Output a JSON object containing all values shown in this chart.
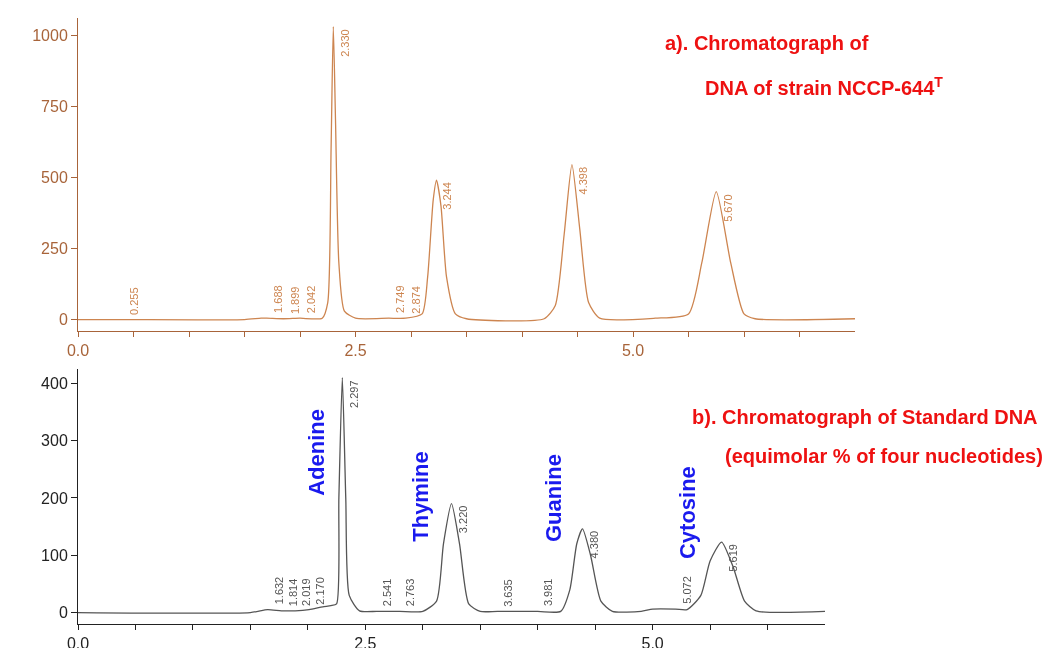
{
  "chart_data": [
    {
      "type": "line",
      "title": "a). Chromatograph of",
      "subtitle": "DNA of strain NCCP-644$^{T}$",
      "x": [
        0,
        0.4,
        1.5,
        1.65,
        1.7,
        1.85,
        2.0,
        2.2,
        2.25,
        2.28,
        2.3,
        2.32,
        2.35,
        2.4,
        2.5,
        2.8,
        2.95,
        3.1,
        3.15,
        3.2,
        3.23,
        3.27,
        3.32,
        3.4,
        3.5,
        4.2,
        4.3,
        4.38,
        4.45,
        4.52,
        4.6,
        4.7,
        5.2,
        5.5,
        5.62,
        5.75,
        5.88,
        6.0,
        6.1,
        7.0
      ],
      "series": [
        {
          "color": "#cd8550",
          "values": [
            0,
            0,
            0,
            5,
            5,
            3,
            5,
            5,
            60,
            600,
            1030,
            700,
            200,
            30,
            5,
            5,
            5,
            20,
            150,
            420,
            490,
            400,
            150,
            20,
            3,
            3,
            50,
            300,
            545,
            320,
            60,
            5,
            5,
            20,
            200,
            450,
            200,
            20,
            3,
            3
          ]
        }
      ],
      "xlim": [
        0,
        7
      ],
      "ylim": [
        -40,
        1060
      ],
      "xticks": [
        {
          "value": 0,
          "label": "0.0"
        },
        {
          "value": 0.5,
          "label": null
        },
        {
          "value": 1,
          "label": null
        },
        {
          "value": 1.5,
          "label": null
        },
        {
          "value": 2,
          "label": null
        },
        {
          "value": 2.5,
          "label": "2.5"
        },
        {
          "value": 3,
          "label": null
        },
        {
          "value": 3.5,
          "label": null
        },
        {
          "value": 4,
          "label": null
        },
        {
          "value": 4.5,
          "label": null
        },
        {
          "value": 5,
          "label": "5.0"
        },
        {
          "value": 5.5,
          "label": null
        },
        {
          "value": 6,
          "label": null
        },
        {
          "value": 6.5,
          "label": null
        }
      ],
      "yticks": [
        0,
        250,
        500,
        750,
        1000
      ],
      "annotations": [
        {
          "text": "0.255",
          "x": 0.4,
          "y": 0
        },
        {
          "text": "1.688",
          "x": 1.7,
          "y": 5
        },
        {
          "text": "1.899",
          "x": 1.85,
          "y": 3
        },
        {
          "text": "2.042",
          "x": 2.0,
          "y": 5
        },
        {
          "text": "2.330",
          "x": 2.3,
          "y": 1030
        },
        {
          "text": "2.749",
          "x": 2.8,
          "y": 5
        },
        {
          "text": "2.874",
          "x": 2.95,
          "y": 5
        },
        {
          "text": "3.244",
          "x": 3.23,
          "y": 490
        },
        {
          "text": "4.398",
          "x": 4.45,
          "y": 545
        },
        {
          "text": "5.670",
          "x": 5.75,
          "y": 450
        }
      ]
    },
    {
      "type": "line",
      "title": "b). Chromatograph of Standard DNA",
      "subtitle": "(equimolar % of four nucleotides)",
      "x": [
        0,
        1.5,
        1.65,
        1.77,
        1.89,
        2.01,
        2.13,
        2.2,
        2.25,
        2.27,
        2.3,
        2.33,
        2.36,
        2.45,
        2.6,
        2.8,
        3.0,
        3.12,
        3.18,
        3.25,
        3.32,
        3.4,
        3.5,
        3.65,
        4.0,
        4.2,
        4.28,
        4.34,
        4.39,
        4.46,
        4.55,
        4.65,
        4.9,
        5.0,
        5.2,
        5.3,
        5.42,
        5.5,
        5.6,
        5.7,
        5.8,
        5.9,
        6.5
      ],
      "series": [
        {
          "color": "#555555",
          "values": [
            0,
            0,
            5,
            3,
            3,
            5,
            10,
            12,
            15,
            200,
            410,
            200,
            30,
            3,
            2,
            2,
            2,
            20,
            120,
            190,
            120,
            15,
            2,
            2,
            2,
            2,
            40,
            120,
            146,
            100,
            20,
            2,
            2,
            6,
            6,
            5,
            30,
            90,
            123,
            80,
            20,
            3,
            2
          ]
        }
      ],
      "xlim": [
        0,
        6.5
      ],
      "ylim": [
        -20,
        425
      ],
      "xticks": [
        {
          "value": 0,
          "label": "0.0"
        },
        {
          "value": 0.5,
          "label": null
        },
        {
          "value": 1,
          "label": null
        },
        {
          "value": 1.5,
          "label": null
        },
        {
          "value": 2,
          "label": null
        },
        {
          "value": 2.5,
          "label": "2.5"
        },
        {
          "value": 3,
          "label": null
        },
        {
          "value": 3.5,
          "label": null
        },
        {
          "value": 4,
          "label": null
        },
        {
          "value": 4.5,
          "label": null
        },
        {
          "value": 5,
          "label": "5.0"
        },
        {
          "value": 5.5,
          "label": null
        },
        {
          "value": 6,
          "label": null
        }
      ],
      "yticks": [
        0,
        100,
        200,
        300,
        400
      ],
      "annotations": [
        {
          "text": "1.632",
          "x": 1.65,
          "y": 5
        },
        {
          "text": "1.814",
          "x": 1.77,
          "y": 3
        },
        {
          "text": "2.019",
          "x": 1.89,
          "y": 3
        },
        {
          "text": "2.170",
          "x": 2.01,
          "y": 5
        },
        {
          "text": "2.297",
          "x": 2.3,
          "y": 410
        },
        {
          "text": "2.541",
          "x": 2.6,
          "y": 2
        },
        {
          "text": "2.763",
          "x": 2.8,
          "y": 2
        },
        {
          "text": "3.220",
          "x": 3.25,
          "y": 190
        },
        {
          "text": "3.635",
          "x": 3.65,
          "y": 2
        },
        {
          "text": "3.981",
          "x": 4.0,
          "y": 2
        },
        {
          "text": "4.380",
          "x": 4.39,
          "y": 146
        },
        {
          "text": "5.072",
          "x": 5.2,
          "y": 6
        },
        {
          "text": "5.619",
          "x": 5.6,
          "y": 123
        },
        {
          "text": "Adenine",
          "x": 2.27,
          "y": 200
        },
        {
          "text": "Thymine",
          "x": 3.18,
          "y": 120
        },
        {
          "text": "Guanine",
          "x": 4.34,
          "y": 120
        },
        {
          "text": "Cytosine",
          "x": 5.5,
          "y": 90
        }
      ]
    }
  ]
}
